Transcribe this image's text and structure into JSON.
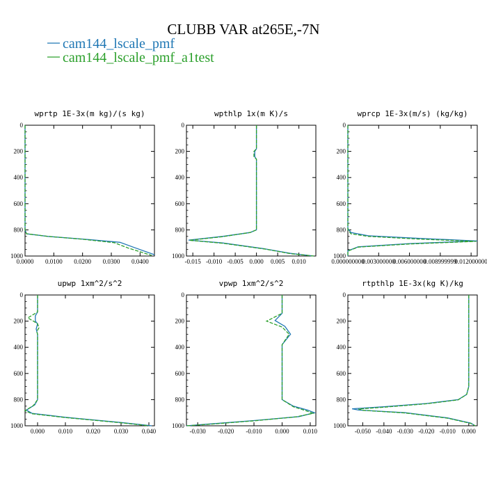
{
  "figure": {
    "title": "CLUBB VAR at265E,-7N",
    "legend": [
      {
        "label": "cam144_lscale_pmf",
        "color": "#1f77b4",
        "dash": "solid"
      },
      {
        "label": "cam144_lscale_pmf_a1test",
        "color": "#2ca02c",
        "dash": "dashed"
      }
    ]
  },
  "chart_data": [
    {
      "type": "line",
      "title": "wprtp  1E-3x(m kg)/(s kg)",
      "xlim": [
        0,
        0.045
      ],
      "ylim": [
        1000,
        0
      ],
      "xticks": [
        0,
        0.01,
        0.02,
        0.03,
        0.04
      ],
      "xticklabels": [
        "0.0000",
        "0.0100",
        "0.0200",
        "0.0300",
        "0.0400"
      ],
      "yticks": [
        0,
        200,
        400,
        600,
        800,
        1000
      ],
      "series": [
        {
          "name": "cam144_lscale_pmf",
          "color": "#1f77b4",
          "points": [
            [
              0,
              0
            ],
            [
              0,
              800
            ],
            [
              0.0005,
              830
            ],
            [
              0.008,
              850
            ],
            [
              0.02,
              870
            ],
            [
              0.033,
              895
            ],
            [
              0.038,
              935
            ],
            [
              0.045,
              990
            ]
          ]
        },
        {
          "name": "cam144_lscale_pmf_a1test",
          "color": "#2ca02c",
          "points": [
            [
              0,
              0
            ],
            [
              0,
              800
            ],
            [
              0.0005,
              830
            ],
            [
              0.008,
              850
            ],
            [
              0.02,
              872
            ],
            [
              0.031,
              898
            ],
            [
              0.036,
              940
            ],
            [
              0.044,
              995
            ]
          ]
        }
      ]
    },
    {
      "type": "line",
      "title": "wpthlp  1x(m K)/s",
      "xlim": [
        -0.0165,
        0.014
      ],
      "ylim": [
        1000,
        0
      ],
      "xticks": [
        -0.015,
        -0.01,
        -0.005,
        0,
        0.005,
        0.01
      ],
      "xticklabels": [
        "-0.015",
        "-0.010",
        "-0.005",
        "0.000",
        "0.005",
        "0.010"
      ],
      "yticks": [
        0,
        200,
        400,
        600,
        800,
        1000
      ],
      "series": [
        {
          "name": "cam144_lscale_pmf",
          "color": "#1f77b4",
          "points": [
            [
              0,
              0
            ],
            [
              0,
              180
            ],
            [
              -0.0004,
              200
            ],
            [
              -0.0004,
              240
            ],
            [
              0,
              260
            ],
            [
              0,
              800
            ],
            [
              -0.0015,
              820
            ],
            [
              -0.008,
              850
            ],
            [
              -0.016,
              878
            ],
            [
              -0.008,
              900
            ],
            [
              0.002,
              945
            ],
            [
              0.008,
              980
            ],
            [
              0.0135,
              1000
            ]
          ]
        },
        {
          "name": "cam144_lscale_pmf_a1test",
          "color": "#2ca02c",
          "points": [
            [
              0,
              0
            ],
            [
              0,
              180
            ],
            [
              -0.0006,
              200
            ],
            [
              -0.0006,
              240
            ],
            [
              0,
              260
            ],
            [
              0,
              800
            ],
            [
              -0.0015,
              820
            ],
            [
              -0.008,
              852
            ],
            [
              -0.0158,
              880
            ],
            [
              -0.008,
              902
            ],
            [
              0.002,
              947
            ],
            [
              0.008,
              982
            ],
            [
              0.0135,
              1000
            ]
          ]
        }
      ]
    },
    {
      "type": "line",
      "title": "wprcp  1E-3x(m/s) (kg/kg)",
      "xlim": [
        0,
        0.0126
      ],
      "ylim": [
        1000,
        0
      ],
      "xticks": [
        0,
        0.003,
        0.006,
        0.009,
        0.012
      ],
      "xticklabels": [
        "0.000000000",
        "0.003000000",
        "0.006000000",
        "0.008999999",
        "0.012000000"
      ],
      "yticks": [
        0,
        200,
        400,
        600,
        800,
        1000
      ],
      "series": [
        {
          "name": "cam144_lscale_pmf",
          "color": "#1f77b4",
          "points": [
            [
              0,
              0
            ],
            [
              0,
              790
            ],
            [
              0.0003,
              820
            ],
            [
              0.002,
              845
            ],
            [
              0.007,
              865
            ],
            [
              0.0126,
              885
            ],
            [
              0.006,
              905
            ],
            [
              0.001,
              930
            ],
            [
              0,
              960
            ],
            [
              0,
              1000
            ]
          ]
        },
        {
          "name": "cam144_lscale_pmf_a1test",
          "color": "#2ca02c",
          "points": [
            [
              0,
              0
            ],
            [
              0,
              800
            ],
            [
              0.0003,
              830
            ],
            [
              0.002,
              850
            ],
            [
              0.0068,
              870
            ],
            [
              0.0125,
              888
            ],
            [
              0.006,
              908
            ],
            [
              0.001,
              932
            ],
            [
              0,
              962
            ],
            [
              0,
              1000
            ]
          ]
        }
      ]
    },
    {
      "type": "line",
      "title": "upwp  1xm^2/s^2",
      "xlim": [
        -0.0045,
        0.042
      ],
      "ylim": [
        1000,
        0
      ],
      "xticks": [
        0,
        0.01,
        0.02,
        0.03,
        0.04
      ],
      "xticklabels": [
        "0.000",
        "0.010",
        "0.020",
        "0.030",
        "0.040"
      ],
      "yticks": [
        0,
        200,
        400,
        600,
        800,
        1000
      ],
      "series": [
        {
          "name": "cam144_lscale_pmf",
          "color": "#1f77b4",
          "points": [
            [
              0,
              0
            ],
            [
              0,
              130
            ],
            [
              -0.0008,
              160
            ],
            [
              -0.0008,
              200
            ],
            [
              0,
              220
            ],
            [
              -0.0005,
              260
            ],
            [
              0,
              300
            ],
            [
              0,
              800
            ],
            [
              -0.001,
              840
            ],
            [
              -0.004,
              880
            ],
            [
              -0.002,
              905
            ],
            [
              0.01,
              935
            ],
            [
              0.03,
              975
            ],
            [
              0.041,
              1000
            ]
          ]
        },
        {
          "name": "cam144_lscale_pmf_a1test",
          "color": "#2ca02c",
          "points": [
            [
              0,
              0
            ],
            [
              0,
              130
            ],
            [
              -0.0035,
              175
            ],
            [
              -0.0015,
              200
            ],
            [
              0,
              220
            ],
            [
              0.0005,
              250
            ],
            [
              -0.0003,
              280
            ],
            [
              0,
              300
            ],
            [
              0,
              800
            ],
            [
              -0.0015,
              845
            ],
            [
              -0.0045,
              885
            ],
            [
              -0.002,
              908
            ],
            [
              0.01,
              937
            ],
            [
              0.03,
              977
            ],
            [
              0.04,
              1000
            ]
          ]
        }
      ]
    },
    {
      "type": "line",
      "title": "vpwp  1xm^2/s^2",
      "xlim": [
        -0.034,
        0.012
      ],
      "ylim": [
        1000,
        0
      ],
      "xticks": [
        -0.03,
        -0.02,
        -0.01,
        0,
        0.01
      ],
      "xticklabels": [
        "-0.030",
        "-0.020",
        "-0.010",
        "0.000",
        "0.010"
      ],
      "yticks": [
        0,
        200,
        400,
        600,
        800,
        1000
      ],
      "series": [
        {
          "name": "cam144_lscale_pmf",
          "color": "#1f77b4",
          "points": [
            [
              0,
              0
            ],
            [
              0,
              140
            ],
            [
              -0.0025,
              195
            ],
            [
              0.001,
              240
            ],
            [
              0.003,
              300
            ],
            [
              0,
              380
            ],
            [
              0,
              800
            ],
            [
              0.004,
              850
            ],
            [
              0.009,
              880
            ],
            [
              0.0115,
              900
            ],
            [
              0.006,
              930
            ],
            [
              -0.01,
              960
            ],
            [
              -0.025,
              985
            ],
            [
              -0.034,
              1000
            ]
          ]
        },
        {
          "name": "cam144_lscale_pmf_a1test",
          "color": "#2ca02c",
          "points": [
            [
              0,
              0
            ],
            [
              0,
              140
            ],
            [
              -0.0055,
              200
            ],
            [
              0,
              245
            ],
            [
              0.0025,
              300
            ],
            [
              0,
              380
            ],
            [
              0,
              800
            ],
            [
              0.004,
              855
            ],
            [
              0.0085,
              885
            ],
            [
              0.011,
              905
            ],
            [
              0.005,
              932
            ],
            [
              -0.01,
              962
            ],
            [
              -0.025,
              987
            ],
            [
              -0.034,
              1000
            ]
          ]
        }
      ]
    },
    {
      "type": "line",
      "title": "rtpthlp  1E-3x(kg K)/kg",
      "xlim": [
        -0.057,
        0.004
      ],
      "ylim": [
        1000,
        0
      ],
      "xticks": [
        -0.05,
        -0.04,
        -0.03,
        -0.02,
        -0.01,
        0
      ],
      "xticklabels": [
        "-0.050",
        "-0.040",
        "-0.030",
        "-0.020",
        "-0.010",
        "0.000"
      ],
      "yticks": [
        0,
        200,
        400,
        600,
        800,
        1000
      ],
      "series": [
        {
          "name": "cam144_lscale_pmf",
          "color": "#1f77b4",
          "points": [
            [
              0,
              0
            ],
            [
              0,
              700
            ],
            [
              -0.001,
              760
            ],
            [
              -0.005,
              800
            ],
            [
              -0.02,
              830
            ],
            [
              -0.04,
              855
            ],
            [
              -0.055,
              870
            ],
            [
              -0.052,
              880
            ],
            [
              -0.03,
              900
            ],
            [
              -0.01,
              940
            ],
            [
              0.001,
              980
            ],
            [
              0.003,
              1000
            ]
          ]
        },
        {
          "name": "cam144_lscale_pmf_a1test",
          "color": "#2ca02c",
          "points": [
            [
              0,
              0
            ],
            [
              0,
              700
            ],
            [
              -0.001,
              760
            ],
            [
              -0.005,
              802
            ],
            [
              -0.02,
              832
            ],
            [
              -0.04,
              858
            ],
            [
              -0.052,
              872
            ],
            [
              -0.05,
              882
            ],
            [
              -0.03,
              902
            ],
            [
              -0.01,
              942
            ],
            [
              0.001,
              982
            ],
            [
              0.003,
              1000
            ]
          ]
        }
      ]
    }
  ]
}
